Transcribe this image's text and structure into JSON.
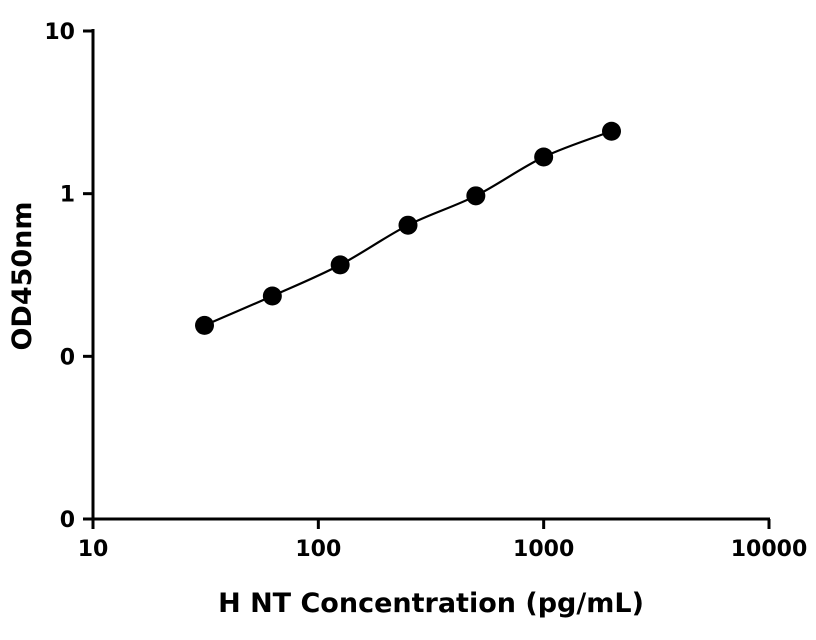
{
  "chart_data": {
    "type": "scatter",
    "title": "",
    "xlabel": "H NT Concentration (pg/mL)",
    "ylabel": "OD450nm",
    "x_scale": "log",
    "y_scale": "log",
    "xlim": [
      10,
      10000
    ],
    "ylim": [
      0.01,
      10
    ],
    "x_ticks": [
      {
        "value": 10,
        "label": "10"
      },
      {
        "value": 100,
        "label": "100"
      },
      {
        "value": 1000,
        "label": "1000"
      },
      {
        "value": 10000,
        "label": "10000"
      }
    ],
    "y_ticks": [
      {
        "value": 0.01,
        "label": "0"
      },
      {
        "value": 0.1,
        "label": "0"
      },
      {
        "value": 1,
        "label": "1"
      },
      {
        "value": 10,
        "label": "10"
      }
    ],
    "grid": false,
    "legend": "none",
    "series": [
      {
        "x": [
          31.25,
          62.5,
          125,
          250,
          500,
          1000,
          2000
        ],
        "y": [
          0.155,
          0.235,
          0.365,
          0.64,
          0.97,
          1.68,
          2.42
        ],
        "marker": "circle",
        "fit_line": true,
        "color": "#000000"
      }
    ]
  }
}
